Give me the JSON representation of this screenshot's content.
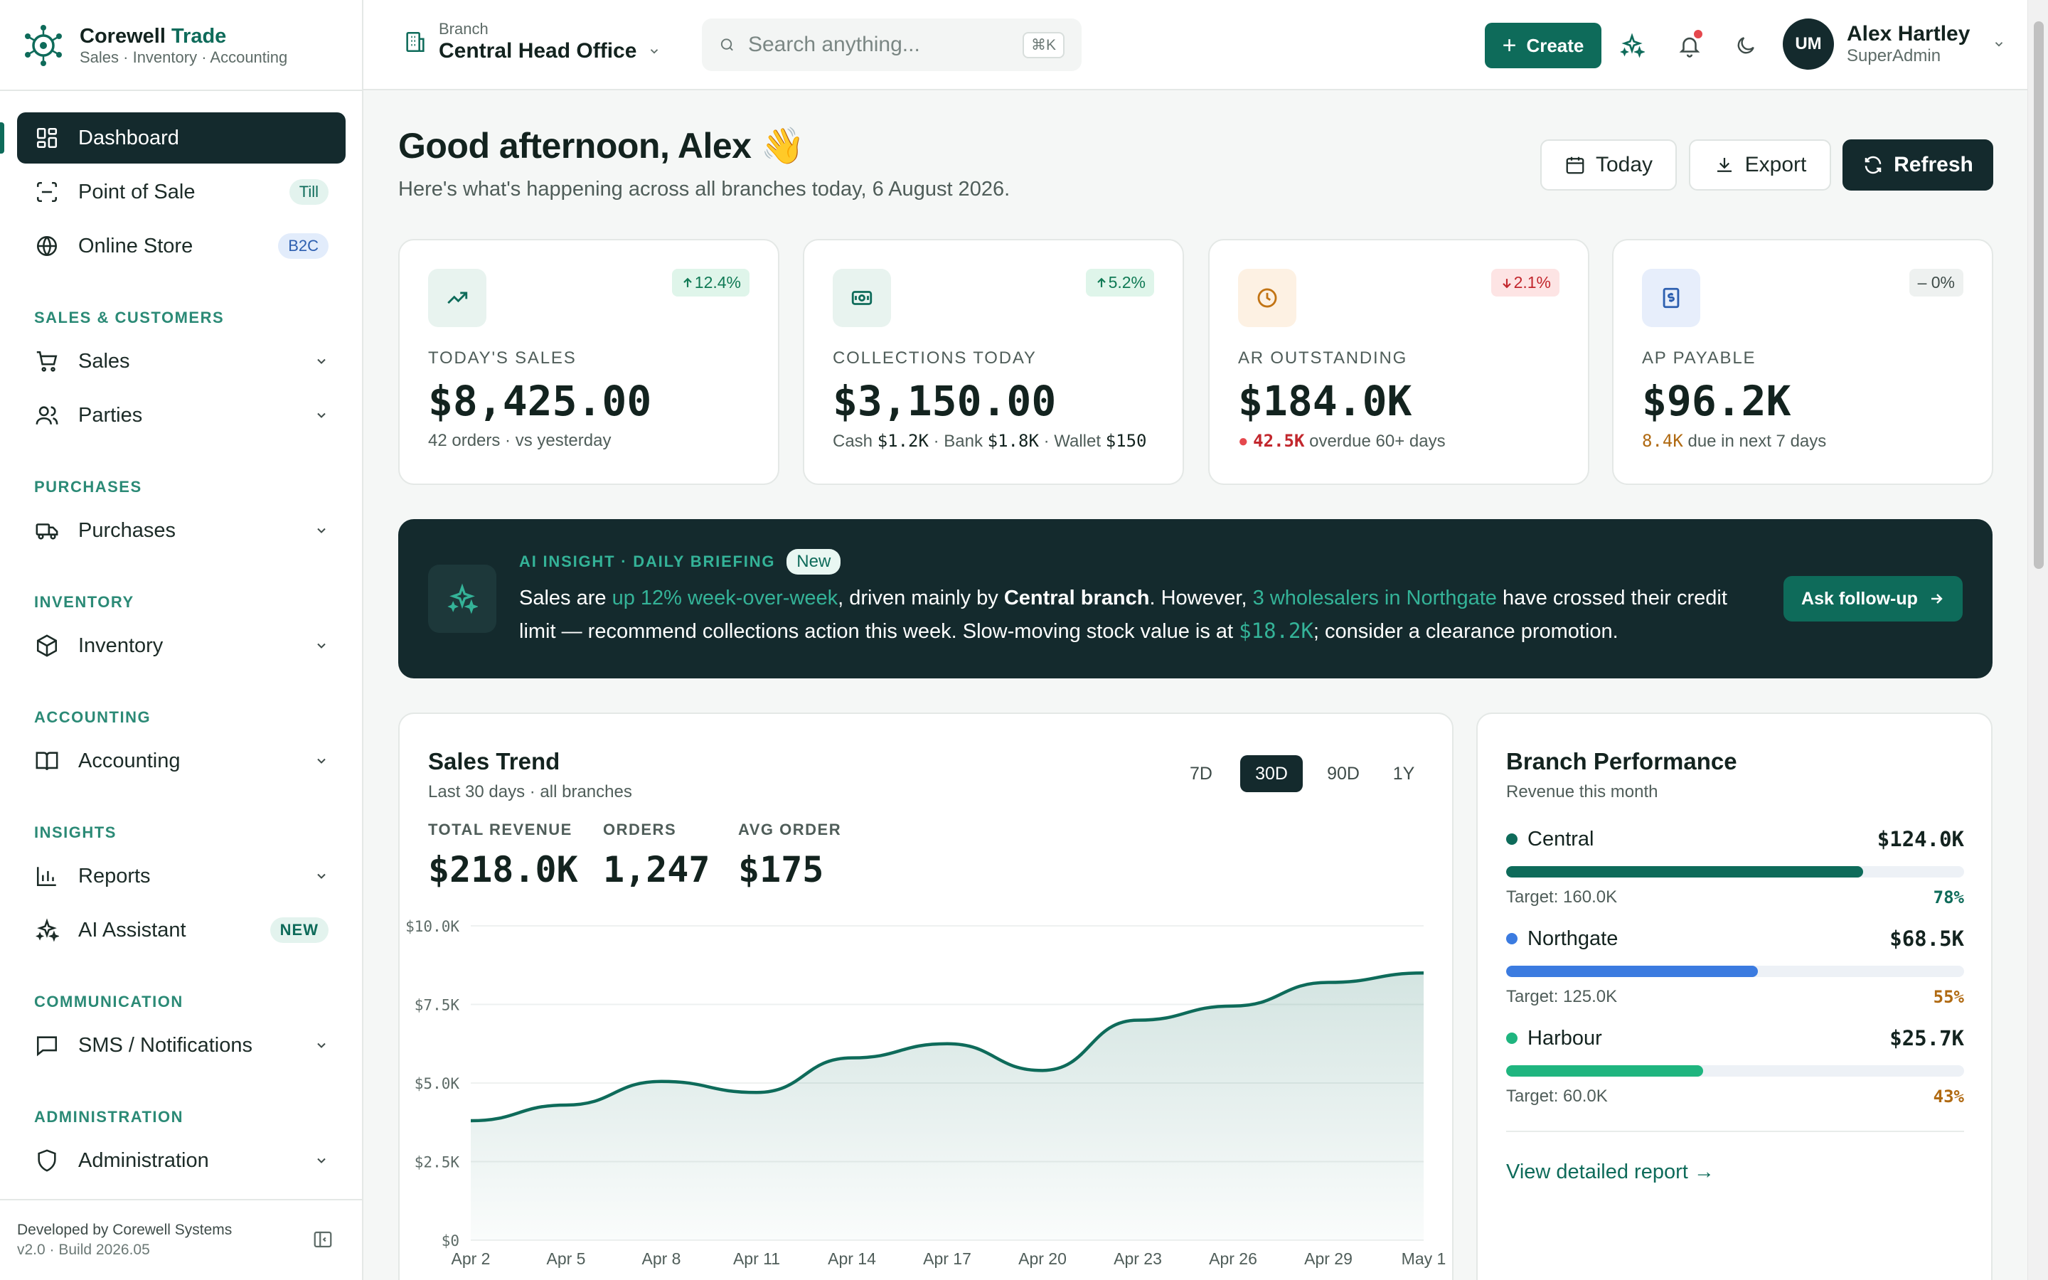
{
  "brand": {
    "name": "Corewell",
    "name_accent": "Trade",
    "subtitle": "Sales · Inventory · Accounting"
  },
  "sidebar": {
    "top_items": [
      {
        "label": "Dashboard",
        "icon": "grid-icon",
        "active": true
      },
      {
        "label": "Point of Sale",
        "icon": "scan-icon",
        "badge": "Till"
      },
      {
        "label": "Online Store",
        "icon": "globe-icon",
        "badge": "B2C"
      }
    ],
    "sections": [
      {
        "title": "SALES & CUSTOMERS",
        "items": [
          {
            "label": "Sales",
            "icon": "cart-icon"
          },
          {
            "label": "Parties",
            "icon": "users-icon"
          }
        ]
      },
      {
        "title": "PURCHASES",
        "items": [
          {
            "label": "Purchases",
            "icon": "truck-icon"
          }
        ]
      },
      {
        "title": "INVENTORY",
        "items": [
          {
            "label": "Inventory",
            "icon": "box-icon"
          }
        ]
      },
      {
        "title": "ACCOUNTING",
        "items": [
          {
            "label": "Accounting",
            "icon": "book-icon"
          }
        ]
      },
      {
        "title": "INSIGHTS",
        "items": [
          {
            "label": "Reports",
            "icon": "bar-chart-icon"
          },
          {
            "label": "AI Assistant",
            "icon": "sparkles-icon",
            "badge": "NEW"
          }
        ]
      },
      {
        "title": "COMMUNICATION",
        "items": [
          {
            "label": "SMS / Notifications",
            "icon": "message-icon"
          }
        ]
      },
      {
        "title": "ADMINISTRATION",
        "items": [
          {
            "label": "Administration",
            "icon": "shield-icon"
          }
        ]
      }
    ],
    "footer": {
      "developer": "Developed by Corewell Systems",
      "version": "v2.0 · Build 2026.05"
    }
  },
  "header": {
    "branch_label": "Branch",
    "branch_value": "Central Head Office",
    "search_placeholder": "Search anything...",
    "search_shortcut": "⌘K",
    "create_label": "Create",
    "user": {
      "initials": "UM",
      "name": "Alex Hartley",
      "role": "SuperAdmin"
    }
  },
  "greeting": {
    "title": "Good afternoon, Alex 👋",
    "subtitle": "Here's what's happening across all branches today, 6 August 2026.",
    "actions": {
      "today": "Today",
      "export": "Export",
      "refresh": "Refresh"
    }
  },
  "kpis": [
    {
      "label": "TODAY'S SALES",
      "value": "$8,425.00",
      "delta": "12.4%",
      "trend": "up",
      "note_a": "42 orders · vs yesterday"
    },
    {
      "label": "COLLECTIONS TODAY",
      "value": "$3,150.00",
      "delta": "5.2%",
      "trend": "up",
      "cash": "$1.2K",
      "bank": "$1.8K",
      "wallet": "$150",
      "cash_label": "Cash",
      "bank_label": "Bank",
      "wallet_label": "Wallet"
    },
    {
      "label": "AR OUTSTANDING",
      "value": "$184.0K",
      "delta": "2.1%",
      "trend": "down",
      "overdue": "42.5K",
      "overdue_text": "overdue 60+ days"
    },
    {
      "label": "AP PAYABLE",
      "value": "$96.2K",
      "delta": "0%",
      "trend": "flat",
      "due": "8.4K",
      "due_text": "due in next 7 days"
    }
  ],
  "insight": {
    "tag": "AI INSIGHT · DAILY BRIEFING",
    "new_badge": "New",
    "t1": "Sales are ",
    "h1": "up 12% week-over-week",
    "t2": ", driven mainly by ",
    "b1": "Central branch",
    "t3": ". However, ",
    "h2": "3 wholesalers in Northgate",
    "t4": " have crossed their credit limit — recommend collections action this week. Slow-moving stock value is at ",
    "h3": "$18.2K",
    "t5": "; consider a clearance promotion.",
    "button": "Ask follow-up"
  },
  "trend": {
    "title": "Sales Trend",
    "subtitle": "Last 30 days · all branches",
    "ranges": [
      "7D",
      "30D",
      "90D",
      "1Y"
    ],
    "selected_range": "30D",
    "stats": [
      {
        "label": "TOTAL REVENUE",
        "value": "$218.0K"
      },
      {
        "label": "ORDERS",
        "value": "1,247"
      },
      {
        "label": "AVG ORDER",
        "value": "$175"
      }
    ]
  },
  "chart_data": {
    "type": "area",
    "title": "Sales Trend",
    "x": [
      "Apr 2",
      "Apr 5",
      "Apr 8",
      "Apr 11",
      "Apr 14",
      "Apr 17",
      "Apr 20",
      "Apr 23",
      "Apr 26",
      "Apr 29",
      "May 1"
    ],
    "series": [
      {
        "values": [
          3800,
          4300,
          5050,
          4700,
          5800,
          6250,
          5400,
          7000,
          7450,
          8200,
          8500
        ]
      }
    ],
    "y_ticks": [
      "$0",
      "$2.5K",
      "$5.0K",
      "$7.5K",
      "$10.0K"
    ],
    "ylim": [
      0,
      10000
    ],
    "grid": true,
    "color": "#0e6b5a"
  },
  "branches": {
    "title": "Branch Performance",
    "subtitle": "Revenue this month",
    "items": [
      {
        "name": "Central",
        "amount": "$124.0K",
        "target": "Target: 160.0K",
        "pct": "78%",
        "progress": 0.78,
        "color": "#0e6b5a",
        "pct_color": "#0e6b5a"
      },
      {
        "name": "Northgate",
        "amount": "$68.5K",
        "target": "Target: 125.0K",
        "pct": "55%",
        "progress": 0.55,
        "color": "#3b7be0",
        "pct_color": "#b06a12"
      },
      {
        "name": "Harbour",
        "amount": "$25.7K",
        "target": "Target: 60.0K",
        "pct": "43%",
        "progress": 0.43,
        "color": "#1fb57f",
        "pct_color": "#b06a12"
      }
    ],
    "link": "View detailed report →"
  }
}
